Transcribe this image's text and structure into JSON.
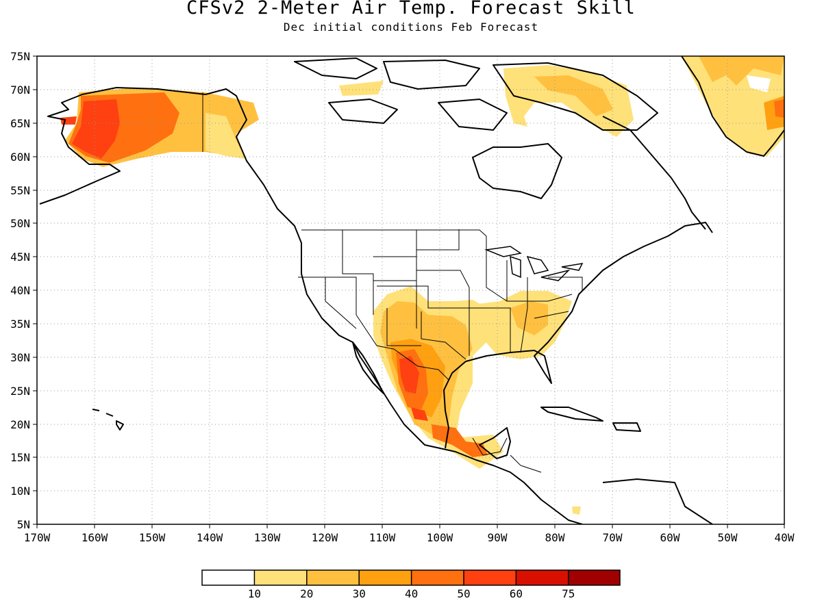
{
  "title": "CFSv2 2-Meter Air Temp. Forecast Skill",
  "subtitle": "Dec initial conditions  Feb Forecast",
  "map": {
    "lon_labels": [
      "170W",
      "160W",
      "150W",
      "140W",
      "130W",
      "120W",
      "110W",
      "100W",
      "90W",
      "80W",
      "70W",
      "60W",
      "50W",
      "40W"
    ],
    "lat_labels": [
      "75N",
      "70N",
      "65N",
      "60N",
      "55N",
      "50N",
      "45N",
      "40N",
      "35N",
      "30N",
      "25N",
      "20N",
      "15N",
      "10N",
      "5N"
    ],
    "lon_range": [
      -170,
      -40
    ],
    "lat_range": [
      5,
      75
    ],
    "grid": "dotted"
  },
  "colorbar": {
    "labels": [
      "10",
      "20",
      "30",
      "40",
      "50",
      "60",
      "75"
    ],
    "colors": [
      "#ffffff",
      "#ffe17a",
      "#ffc040",
      "#ffa010",
      "#ff7010",
      "#ff4010",
      "#d81000",
      "#a00000"
    ]
  },
  "regions": [
    {
      "name": "Alaska",
      "level": "40-60"
    },
    {
      "name": "Northern Mexico / Texas",
      "level": "40-60"
    },
    {
      "name": "Southeastern US",
      "level": "10-30"
    },
    {
      "name": "Greenland",
      "level": "10-50"
    },
    {
      "name": "Canadian Arctic",
      "level": "10-30"
    }
  ]
}
